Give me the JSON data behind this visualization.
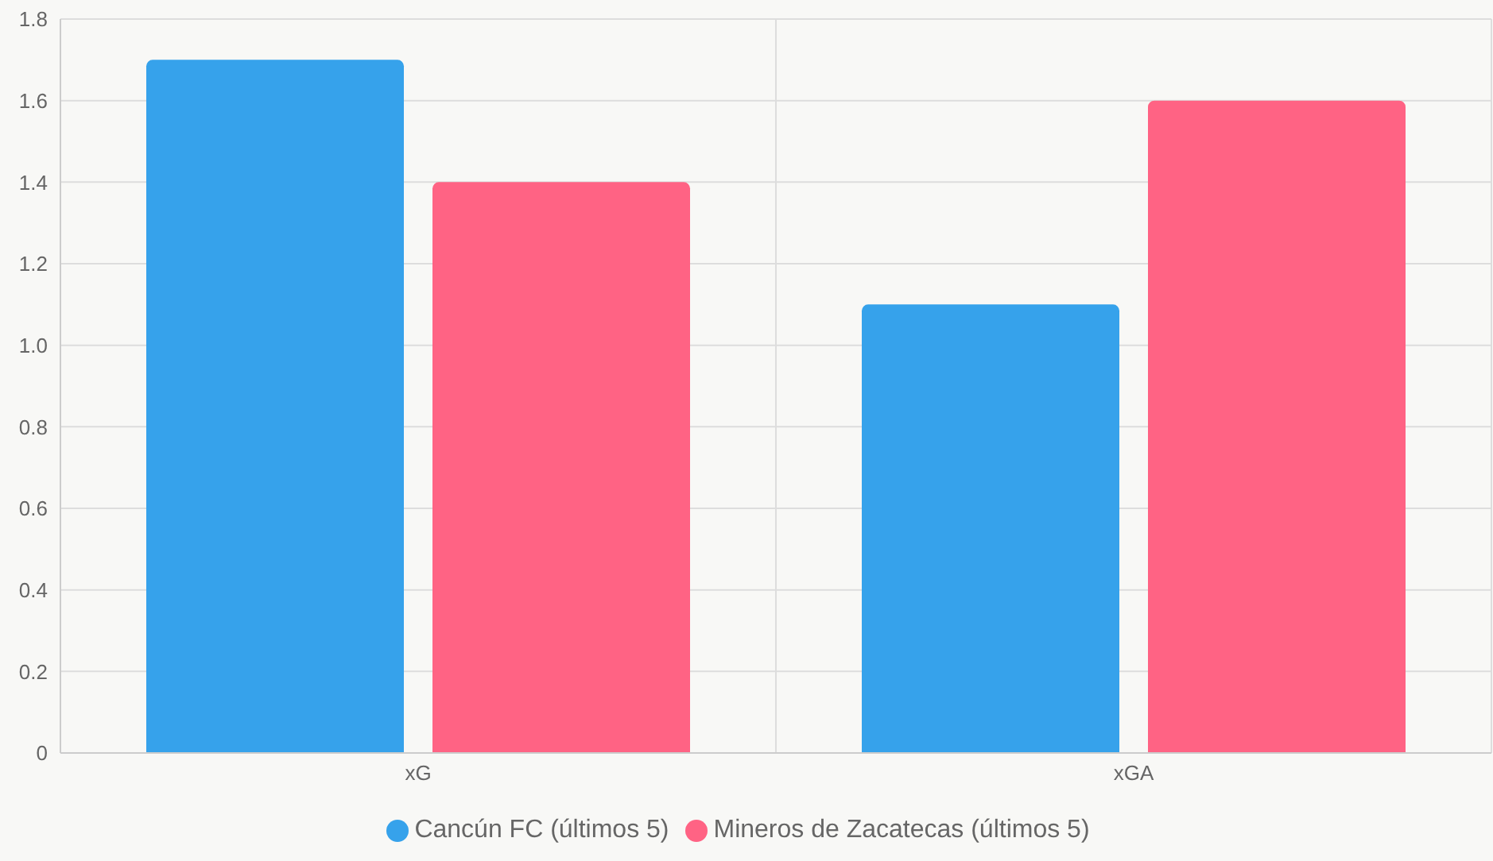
{
  "chart_data": {
    "type": "bar",
    "categories": [
      "xG",
      "xGA"
    ],
    "series": [
      {
        "name": "Cancún FC (últimos 5)",
        "color": "#36a2eb",
        "values": [
          1.7,
          1.1
        ]
      },
      {
        "name": "Mineros de Zacatecas (últimos 5)",
        "color": "#ff6384",
        "values": [
          1.4,
          1.6
        ]
      }
    ],
    "ylim": [
      0,
      1.8
    ],
    "yticks": [
      0,
      {
        "value": 0.2,
        "label": "0.2"
      },
      {
        "value": 0.4,
        "label": "0.4"
      },
      {
        "value": 0.6,
        "label": "0.6"
      },
      {
        "value": 0.8,
        "label": "0.8"
      },
      {
        "value": 1,
        "label": "1.0"
      },
      {
        "value": 1.2,
        "label": "1.2"
      },
      {
        "value": 1.4,
        "label": "1.4"
      },
      {
        "value": 1.6,
        "label": "1.6"
      },
      {
        "value": 1.8,
        "label": "1.8"
      }
    ],
    "grid": true,
    "legend": "bottom"
  }
}
